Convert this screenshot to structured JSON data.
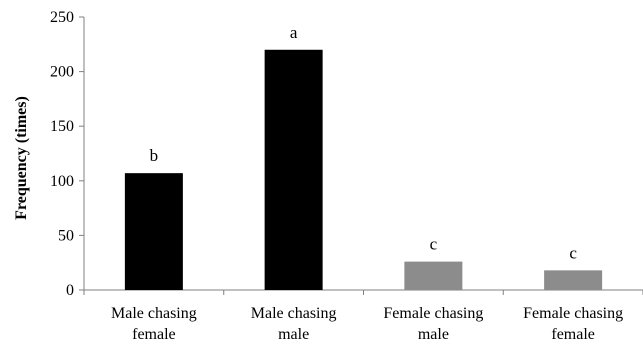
{
  "chart_data": {
    "type": "bar",
    "ylabel": "Frequency (times)",
    "xlabel": "",
    "ylim": [
      0,
      250
    ],
    "yticks": [
      0,
      50,
      100,
      150,
      200,
      250
    ],
    "categories": [
      [
        "Male chasing",
        "female"
      ],
      [
        "Male chasing",
        "male"
      ],
      [
        "Female chasing",
        "male"
      ],
      [
        "Female chasing",
        "female"
      ]
    ],
    "values": [
      107,
      220,
      26,
      18
    ],
    "significance_labels": [
      "b",
      "a",
      "c",
      "c"
    ],
    "bar_colors": [
      "#000000",
      "#000000",
      "#8c8c8c",
      "#8c8c8c"
    ],
    "grid": false,
    "legend": "none"
  }
}
